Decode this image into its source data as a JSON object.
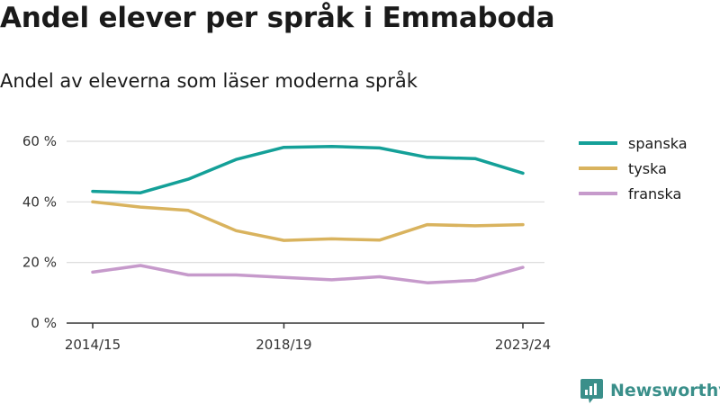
{
  "header": {
    "title": "Andel elever per språk i Emmaboda",
    "subtitle": "Andel av eleverna som läser moderna språk"
  },
  "brand": {
    "name": "Newsworthy",
    "icon": "newsworthy-logo-icon",
    "color": "#3a8f8a"
  },
  "chart_data": {
    "type": "line",
    "title": "Andel elever per språk i Emmaboda",
    "subtitle": "Andel av eleverna som läser moderna språk",
    "xlabel": "",
    "ylabel": "",
    "x": [
      "2014/15",
      "2015/16",
      "2016/17",
      "2017/18",
      "2018/19",
      "2019/20",
      "2020/21",
      "2021/22",
      "2022/23",
      "2023/24"
    ],
    "x_tick_labels": [
      "2014/15",
      "2018/19",
      "2023/24"
    ],
    "y_ticks": [
      0,
      20,
      40,
      60
    ],
    "y_tick_labels": [
      "0 %",
      "20 %",
      "40 %",
      "60 %"
    ],
    "ylim": [
      0,
      60
    ],
    "grid": true,
    "legend_position": "right",
    "series": [
      {
        "name": "spanska",
        "color": "#14a098",
        "values": [
          43.5,
          43.0,
          47.5,
          54.0,
          58.0,
          58.3,
          57.8,
          54.7,
          54.3,
          49.5
        ]
      },
      {
        "name": "tyska",
        "color": "#d9b35e",
        "values": [
          40.0,
          38.3,
          37.2,
          30.5,
          27.3,
          27.8,
          27.4,
          32.5,
          32.1,
          32.5
        ]
      },
      {
        "name": "franska",
        "color": "#c69acb",
        "values": [
          16.8,
          19.0,
          15.9,
          15.9,
          15.1,
          14.3,
          15.3,
          13.3,
          14.1,
          18.4
        ]
      }
    ]
  }
}
